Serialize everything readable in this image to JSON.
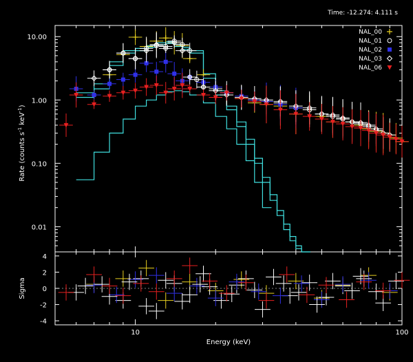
{
  "header": {
    "time_label": "Time: -12.274: 4.111 s"
  },
  "chart_data": [
    {
      "type": "scatter",
      "panel": "spectrum",
      "xlabel": "Energy (keV)",
      "ylabel_main": "Rate (counts s",
      "ylabel_sup1": "-1",
      "ylabel_mid": " keV",
      "ylabel_sup2": "-1",
      "ylabel_end": ")",
      "x_scale": "log",
      "y_scale": "log",
      "xlim": [
        5,
        100
      ],
      "ylim": [
        0.004,
        15
      ],
      "x_ticks": [
        "10",
        "100"
      ],
      "y_ticks": [
        "10.00",
        "1.00",
        "0.10",
        "0.01"
      ],
      "legend_position": "top-right",
      "series": [
        {
          "name": "NAL_00",
          "color": "#e8d020",
          "marker": "plus",
          "x": [
            7,
            8,
            9,
            10,
            11,
            12,
            13,
            14,
            15,
            16,
            18,
            20,
            22,
            25,
            28,
            31,
            35,
            40,
            45,
            50,
            55,
            60,
            65,
            70,
            75,
            80,
            85,
            90,
            95,
            100
          ],
          "y": [
            1.2,
            2.5,
            5.2,
            9.8,
            7.0,
            8.5,
            9.5,
            8.0,
            7.2,
            4.5,
            2.5,
            1.6,
            1.2,
            1.05,
            0.9,
            0.85,
            0.8,
            0.6,
            0.7,
            0.55,
            0.45,
            0.5,
            0.45,
            0.4,
            0.35,
            0.32,
            0.3,
            0.28,
            0.25,
            0.22
          ]
        },
        {
          "name": "NAL_01",
          "color": "#ffffff",
          "marker": "circle",
          "x": [
            8,
            9,
            10,
            11,
            12,
            13,
            14,
            15,
            16,
            17,
            18,
            20,
            22,
            25,
            28,
            31,
            35,
            40,
            45,
            50,
            55,
            60,
            65,
            70,
            75,
            80
          ],
          "y": [
            3.0,
            5.5,
            4.5,
            6.5,
            7.2,
            7.0,
            8.5,
            7.5,
            6.0,
            2.1,
            1.6,
            1.5,
            1.3,
            1.1,
            1.0,
            0.95,
            0.9,
            0.75,
            0.7,
            0.6,
            0.55,
            0.5,
            0.45,
            0.42,
            0.38,
            0.33
          ]
        },
        {
          "name": "NAL_02",
          "color": "#3030e8",
          "marker": "square",
          "x": [
            6,
            7,
            8,
            9,
            10,
            11,
            12,
            13,
            14,
            15,
            16,
            18,
            20,
            22,
            25,
            28,
            31,
            35,
            40
          ],
          "y": [
            1.5,
            1.2,
            1.8,
            2.1,
            2.5,
            3.8,
            2.8,
            4.0,
            2.6,
            2.0,
            2.3,
            1.9,
            1.6,
            1.3,
            1.15,
            1.0,
            0.95,
            0.85,
            0.75
          ]
        },
        {
          "name": "NAL_03",
          "color": "#ffffff",
          "marker": "diamond",
          "x": [
            7,
            8,
            9,
            10,
            11,
            12,
            13,
            14,
            15,
            16,
            18,
            20,
            22,
            25,
            28,
            31,
            35,
            40,
            45,
            50,
            55,
            60,
            65,
            70,
            75,
            80,
            85,
            90
          ],
          "y": [
            2.2,
            3.0,
            5.5,
            4.5,
            6.0,
            7.5,
            6.5,
            8.0,
            6.0,
            2.3,
            1.6,
            1.4,
            1.2,
            1.1,
            1.05,
            1.0,
            0.95,
            0.8,
            0.75,
            0.6,
            0.58,
            0.52,
            0.45,
            0.44,
            0.4,
            0.35,
            0.3,
            0.28
          ]
        },
        {
          "name": "NAL_06",
          "color": "#e82020",
          "marker": "triangle",
          "x": [
            5.5,
            6,
            7,
            8,
            9,
            10,
            11,
            12,
            13,
            14,
            15,
            16,
            18,
            20,
            22,
            25,
            28,
            31,
            35,
            40,
            45,
            50,
            55,
            60,
            65,
            70,
            75,
            80,
            85,
            90,
            95,
            100
          ],
          "y": [
            0.4,
            1.2,
            0.85,
            1.15,
            1.3,
            1.4,
            1.6,
            1.7,
            1.3,
            1.5,
            1.7,
            1.5,
            1.2,
            1.1,
            1.3,
            1.05,
            0.95,
            0.85,
            0.7,
            0.6,
            0.55,
            0.5,
            0.45,
            0.42,
            0.38,
            0.36,
            0.33,
            0.3,
            0.28,
            0.26,
            0.24,
            0.22
          ]
        }
      ]
    },
    {
      "type": "scatter",
      "panel": "residuals",
      "ylabel": "Sigma",
      "x_scale": "log",
      "xlim": [
        5,
        100
      ],
      "ylim": [
        -4.5,
        4.5
      ],
      "y_ticks": [
        "4",
        "2",
        "0",
        "-2",
        "-4"
      ],
      "series": [
        {
          "name": "NAL_00",
          "color": "#e8d020",
          "x": [
            7,
            9,
            11,
            13,
            16,
            20,
            25,
            31,
            40,
            50,
            60,
            75,
            90
          ],
          "y": [
            0.5,
            1.2,
            2.5,
            -1.5,
            0.8,
            -0.3,
            1.1,
            -0.6,
            0.9,
            -1.2,
            0.4,
            1.6,
            -0.5
          ]
        },
        {
          "name": "NAL_01",
          "color": "#ffffff",
          "x": [
            6,
            7.5,
            9,
            10.5,
            12,
            14,
            16,
            18,
            21,
            24,
            28,
            33,
            38,
            45,
            52,
            60,
            70,
            80,
            95
          ],
          "y": [
            -0.5,
            0.5,
            -1.5,
            1.2,
            -2.8,
            0.6,
            -0.8,
            1.8,
            -1.5,
            0.4,
            -0.2,
            1.4,
            -0.9,
            0.7,
            -1.1,
            0.3,
            1.5,
            -0.4,
            0.9
          ]
        },
        {
          "name": "NAL_02",
          "color": "#3030e8",
          "x": [
            7,
            8.5,
            10,
            12,
            14,
            17,
            20,
            24,
            29,
            35,
            42,
            50,
            60,
            75,
            90
          ],
          "y": [
            0.4,
            -0.8,
            1.1,
            1.6,
            -0.6,
            0.3,
            -1.2,
            0.8,
            -0.4,
            -0.9,
            0.6,
            -1.4,
            0.5,
            1.0,
            -0.3
          ]
        },
        {
          "name": "NAL_03",
          "color": "#ffffff",
          "x": [
            6.5,
            8,
            9.5,
            11,
            13,
            15,
            17.5,
            19,
            23,
            26,
            30,
            36,
            41,
            48,
            55,
            65,
            72,
            85
          ],
          "y": [
            0.3,
            -1.0,
            0.8,
            -2.2,
            1.0,
            -1.6,
            0.5,
            0.2,
            -0.7,
            1.2,
            -2.6,
            0.6,
            -0.5,
            -2.0,
            0.9,
            -0.3,
            1.2,
            -1.8
          ]
        },
        {
          "name": "NAL_06",
          "color": "#e82020",
          "x": [
            5.5,
            7,
            8,
            9,
            10.5,
            12,
            14,
            16,
            19,
            22,
            26,
            31,
            37,
            44,
            52,
            62,
            72,
            85,
            100
          ],
          "y": [
            -0.5,
            1.7,
            0.3,
            -0.9,
            0.6,
            -0.4,
            1.2,
            2.8,
            0.9,
            -0.6,
            0.7,
            -1.5,
            1.7,
            -0.8,
            0.4,
            -1.4,
            0.8,
            -0.3,
            1.0
          ]
        }
      ]
    }
  ],
  "models": [
    {
      "color": "#40e0e0",
      "x": [
        6,
        7,
        8,
        9,
        10,
        11,
        12,
        13,
        14,
        15,
        16,
        18,
        20,
        22,
        24,
        26,
        28,
        30,
        32,
        34,
        36,
        38,
        40,
        42
      ],
      "y": [
        1.3,
        1.8,
        4.0,
        6.0,
        6.5,
        7.2,
        8.0,
        8.3,
        7.5,
        6.8,
        6.0,
        2.6,
        1.4,
        0.8,
        0.45,
        0.24,
        0.12,
        0.06,
        0.032,
        0.018,
        0.011,
        0.007,
        0.005,
        0.004
      ]
    },
    {
      "color": "#40e0e0",
      "x": [
        6,
        7,
        8,
        9,
        10,
        11,
        12,
        13,
        14,
        15,
        16,
        18,
        20,
        22,
        24,
        26,
        28,
        30,
        32,
        34,
        36,
        38,
        40,
        42
      ],
      "y": [
        1.1,
        1.5,
        3.5,
        5.5,
        6.0,
        6.8,
        7.5,
        7.8,
        7.0,
        6.3,
        5.5,
        2.2,
        1.2,
        0.7,
        0.38,
        0.2,
        0.1,
        0.05,
        0.026,
        0.015,
        0.009,
        0.006,
        0.0045,
        0.004
      ]
    },
    {
      "color": "#40e0e0",
      "x": [
        6,
        7,
        8,
        9,
        10,
        11,
        12,
        13,
        14,
        15,
        16,
        18,
        20,
        22,
        24,
        26,
        28,
        30
      ],
      "y": [
        0.055,
        0.15,
        0.3,
        0.5,
        0.8,
        1.0,
        1.2,
        1.35,
        1.4,
        1.35,
        1.2,
        0.9,
        0.55,
        0.35,
        0.2,
        0.11,
        0.05,
        0.02
      ]
    }
  ]
}
